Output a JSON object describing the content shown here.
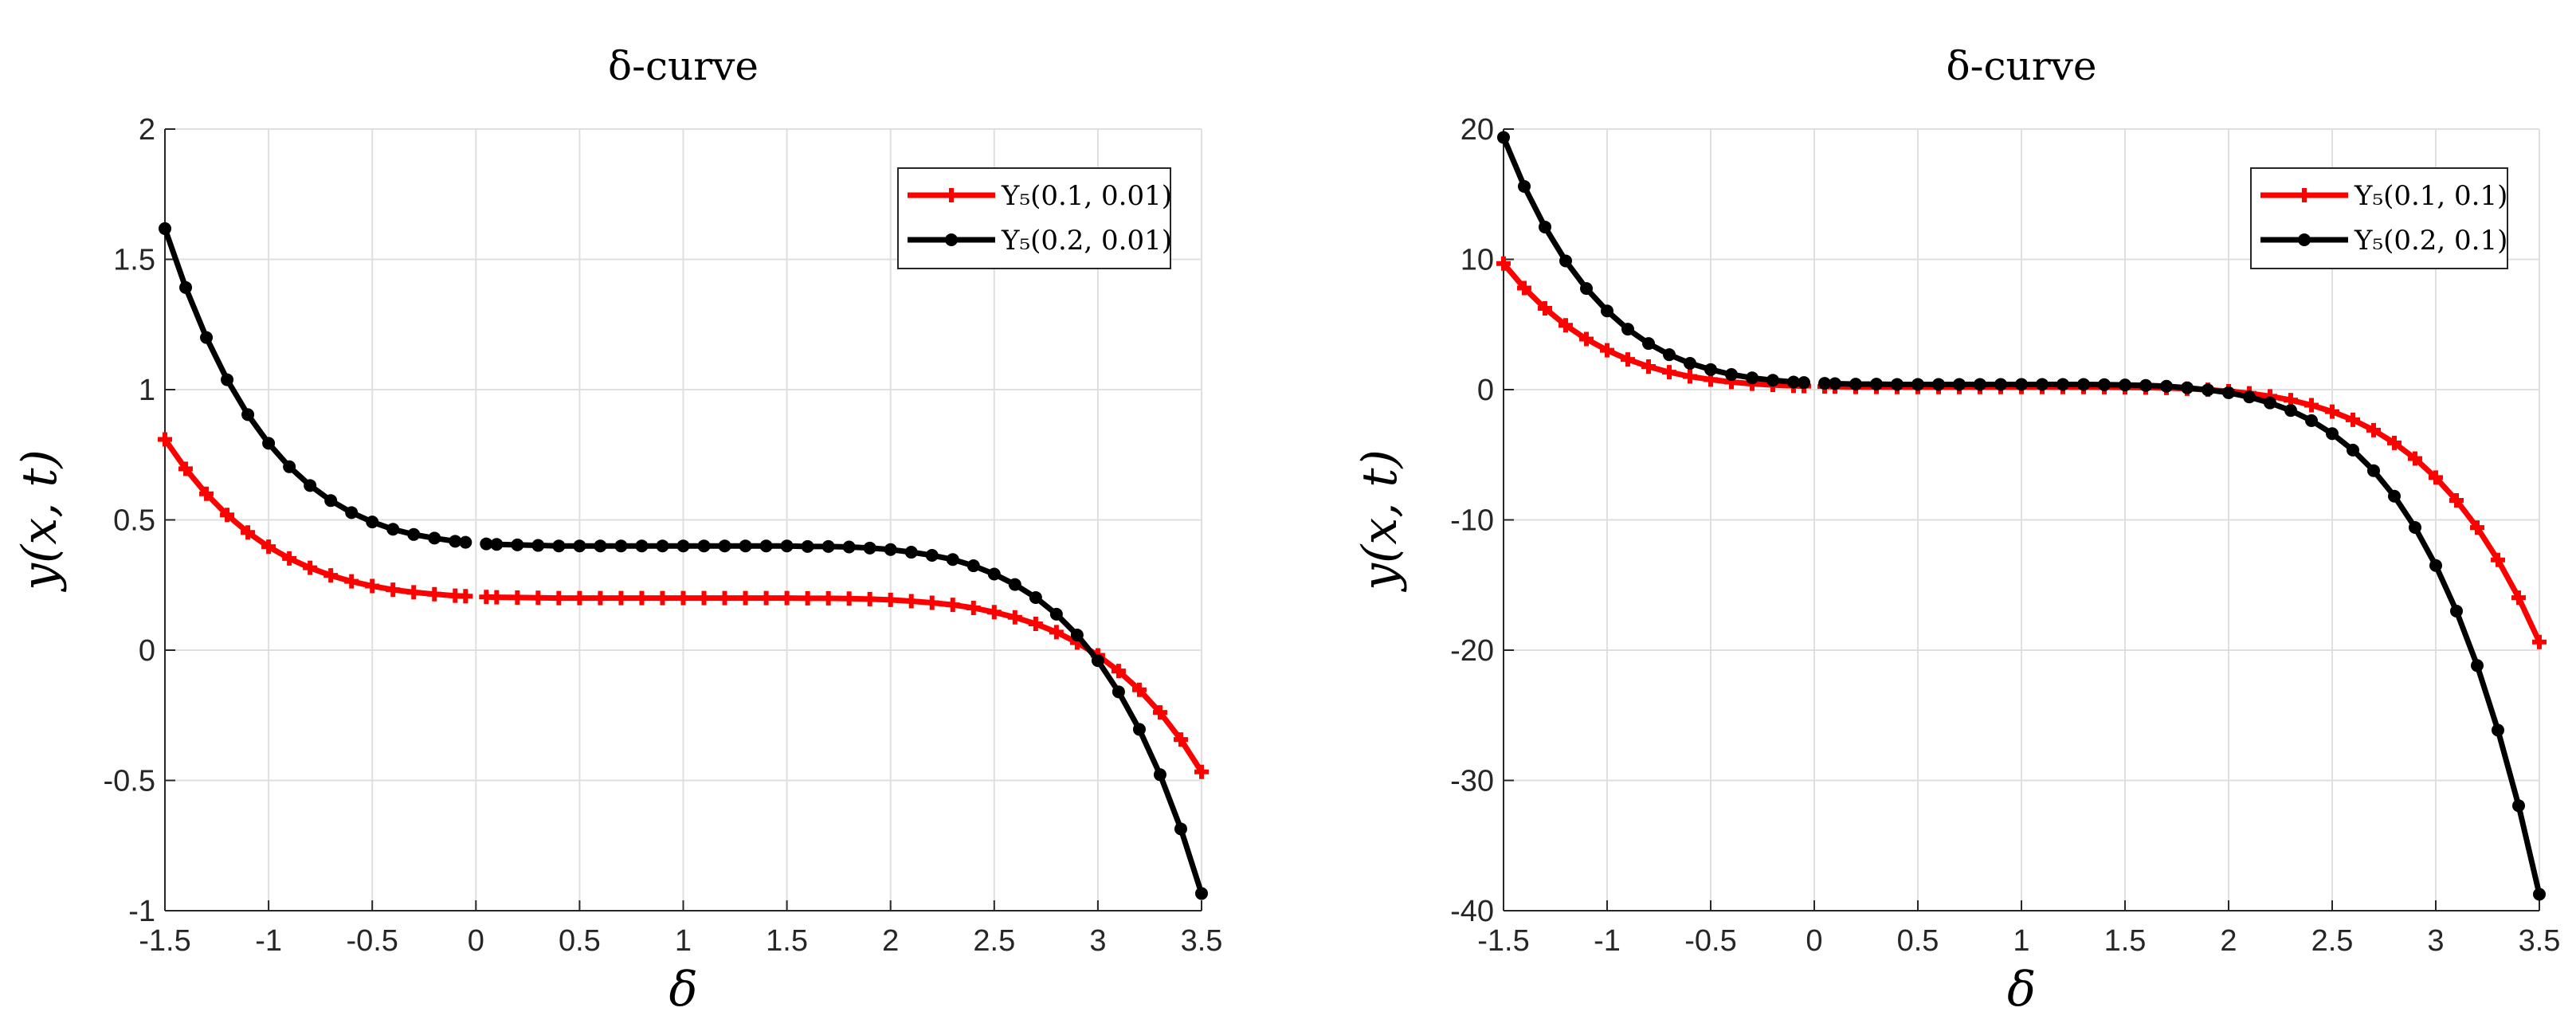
{
  "chart_data": [
    {
      "type": "line",
      "title": "δ-curve",
      "xlabel": "δ",
      "ylabel": "y(x, t)",
      "xlim": [
        -1.5,
        3.5
      ],
      "ylim": [
        -1,
        2
      ],
      "grid": true,
      "legend_placement": "top-right",
      "xticks": [
        "-1.5",
        "-1",
        "-0.5",
        "0",
        "0.5",
        "1",
        "1.5",
        "2",
        "2.5",
        "3",
        "3.5"
      ],
      "yticks": [
        "-1",
        "-0.5",
        "0",
        "0.5",
        "1",
        "1.5",
        "2"
      ],
      "x": [
        -1.5,
        -1.4,
        -1.3,
        -1.2,
        -1.1,
        -1.0,
        -0.9,
        -0.8,
        -0.7,
        -0.6,
        -0.5,
        -0.4,
        -0.3,
        -0.2,
        -0.1,
        -0.05,
        0.05,
        0.1,
        0.2,
        0.3,
        0.4,
        0.5,
        0.6,
        0.7,
        0.8,
        0.9,
        1.0,
        1.1,
        1.2,
        1.3,
        1.4,
        1.5,
        1.6,
        1.7,
        1.8,
        1.9,
        2.0,
        2.1,
        2.2,
        2.3,
        2.4,
        2.5,
        2.6,
        2.7,
        2.8,
        2.9,
        3.0,
        3.1,
        3.2,
        3.3,
        3.4,
        3.5
      ],
      "series": [
        {
          "name": "Y₅(0.1, 0.01)",
          "color": "#ff0000",
          "marker": "plus",
          "values": [
            0.809,
            0.696,
            0.6,
            0.519,
            0.452,
            0.397,
            0.352,
            0.316,
            0.287,
            0.264,
            0.246,
            0.232,
            0.222,
            0.215,
            0.209,
            0.207,
            0.204,
            0.203,
            0.202,
            0.201,
            0.2,
            0.2,
            0.2,
            0.2,
            0.2,
            0.2,
            0.2,
            0.2,
            0.2,
            0.2,
            0.2,
            0.2,
            0.199,
            0.199,
            0.198,
            0.196,
            0.193,
            0.188,
            0.182,
            0.174,
            0.162,
            0.146,
            0.126,
            0.101,
            0.069,
            0.029,
            -0.02,
            -0.08,
            -0.152,
            -0.239,
            -0.343,
            -0.467
          ]
        },
        {
          "name": "Y₅(0.2, 0.01)",
          "color": "#000000",
          "marker": "circle",
          "values": [
            1.618,
            1.392,
            1.2,
            1.038,
            0.904,
            0.794,
            0.704,
            0.632,
            0.574,
            0.528,
            0.492,
            0.464,
            0.444,
            0.43,
            0.418,
            0.414,
            0.408,
            0.406,
            0.404,
            0.402,
            0.4,
            0.4,
            0.4,
            0.4,
            0.4,
            0.4,
            0.4,
            0.4,
            0.4,
            0.4,
            0.4,
            0.4,
            0.398,
            0.398,
            0.396,
            0.392,
            0.386,
            0.376,
            0.364,
            0.348,
            0.324,
            0.292,
            0.252,
            0.202,
            0.138,
            0.058,
            -0.04,
            -0.16,
            -0.304,
            -0.478,
            -0.686,
            -0.934
          ]
        }
      ]
    },
    {
      "type": "line",
      "title": "δ-curve",
      "xlabel": "δ",
      "ylabel": "y(x, t)",
      "xlim": [
        -1.5,
        3.5
      ],
      "ylim": [
        -40,
        20
      ],
      "grid": true,
      "legend_placement": "top-right",
      "xticks": [
        "-1.5",
        "-1",
        "-0.5",
        "0",
        "0.5",
        "1",
        "1.5",
        "2",
        "2.5",
        "3",
        "3.5"
      ],
      "yticks": [
        "-40",
        "-30",
        "-20",
        "-10",
        "0",
        "10",
        "20"
      ],
      "x": [
        -1.5,
        -1.4,
        -1.3,
        -1.2,
        -1.1,
        -1.0,
        -0.9,
        -0.8,
        -0.7,
        -0.6,
        -0.5,
        -0.4,
        -0.3,
        -0.2,
        -0.1,
        -0.05,
        0.05,
        0.1,
        0.2,
        0.3,
        0.4,
        0.5,
        0.6,
        0.7,
        0.8,
        0.9,
        1.0,
        1.1,
        1.2,
        1.3,
        1.4,
        1.5,
        1.6,
        1.7,
        1.8,
        1.9,
        2.0,
        2.1,
        2.2,
        2.3,
        2.4,
        2.5,
        2.6,
        2.7,
        2.8,
        2.9,
        3.0,
        3.1,
        3.2,
        3.3,
        3.4,
        3.5
      ],
      "series": [
        {
          "name": "Y₅(0.1, 0.1)",
          "color": "#ff0000",
          "marker": "plus",
          "values": [
            9.68,
            7.8,
            6.24,
            4.94,
            3.88,
            3.02,
            2.32,
            1.77,
            1.34,
            1.01,
            0.77,
            0.58,
            0.45,
            0.36,
            0.29,
            0.27,
            0.24,
            0.23,
            0.21,
            0.21,
            0.2,
            0.2,
            0.2,
            0.2,
            0.2,
            0.2,
            0.2,
            0.2,
            0.2,
            0.2,
            0.19,
            0.18,
            0.16,
            0.13,
            0.07,
            -0.01,
            -0.12,
            -0.28,
            -0.51,
            -0.8,
            -1.19,
            -1.69,
            -2.32,
            -3.11,
            -4.09,
            -5.29,
            -6.75,
            -8.5,
            -10.59,
            -13.07,
            -15.97,
            -19.37
          ]
        },
        {
          "name": "Y₅(0.2, 0.1)",
          "color": "#000000",
          "marker": "circle",
          "values": [
            19.36,
            15.6,
            12.48,
            9.88,
            7.76,
            6.04,
            4.64,
            3.54,
            2.68,
            2.02,
            1.54,
            1.16,
            0.9,
            0.72,
            0.58,
            0.54,
            0.48,
            0.46,
            0.42,
            0.42,
            0.4,
            0.4,
            0.4,
            0.4,
            0.4,
            0.4,
            0.4,
            0.4,
            0.4,
            0.4,
            0.38,
            0.36,
            0.32,
            0.26,
            0.14,
            -0.02,
            -0.24,
            -0.56,
            -1.02,
            -1.6,
            -2.38,
            -3.38,
            -4.64,
            -6.22,
            -8.18,
            -10.58,
            -13.5,
            -17.0,
            -21.18,
            -26.14,
            -31.94,
            -38.74
          ]
        }
      ]
    }
  ]
}
